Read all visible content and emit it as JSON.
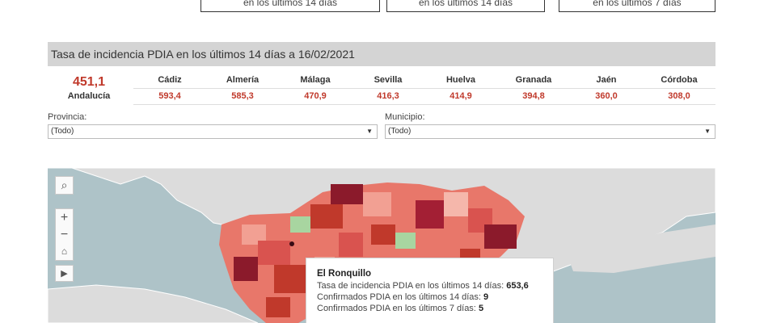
{
  "top_boxes": [
    {
      "text": "en los últimos 14 días"
    },
    {
      "text": "en los últimos 14 días"
    },
    {
      "text": "en los últimos 7 días"
    }
  ],
  "panel": {
    "title": "Tasa de incidencia PDIA en los últimos 14 días a 16/02/2021"
  },
  "andalucia": {
    "value": "451,1",
    "label": "Andalucía"
  },
  "provinces": [
    {
      "name": "Cádiz",
      "value": "593,4"
    },
    {
      "name": "Almería",
      "value": "585,3"
    },
    {
      "name": "Málaga",
      "value": "470,9"
    },
    {
      "name": "Sevilla",
      "value": "416,3"
    },
    {
      "name": "Huelva",
      "value": "414,9"
    },
    {
      "name": "Granada",
      "value": "394,8"
    },
    {
      "name": "Jaén",
      "value": "360,0"
    },
    {
      "name": "Córdoba",
      "value": "308,0"
    }
  ],
  "filters": {
    "provincia": {
      "label": "Provincia:",
      "value": "(Todo)"
    },
    "municipio": {
      "label": "Municipio:",
      "value": "(Todo)"
    }
  },
  "map_controls": {
    "search": "search-icon",
    "zoom_in": "plus-icon",
    "zoom_out": "minus-icon",
    "home": "home-icon",
    "play": "play-icon"
  },
  "tooltip": {
    "title": "El Ronquillo",
    "lines": [
      {
        "label": "Tasa de incidencia PDIA en los últimos 14 días:",
        "value": "653,6"
      },
      {
        "label": "Confirmados PDIA en los últimos 14 días:",
        "value": "9"
      },
      {
        "label": "Confirmados PDIA en los últimos 7 días:",
        "value": "5"
      }
    ]
  },
  "colors": {
    "accent_red": "#c0392b",
    "sea": "#aec3c8",
    "land": "#dcdcdc",
    "low_green": "#a8d5a0"
  }
}
